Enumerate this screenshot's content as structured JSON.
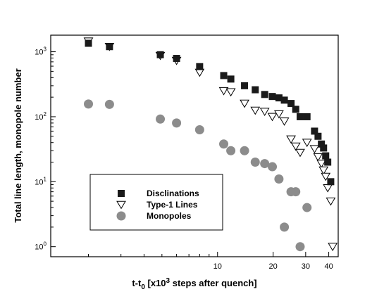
{
  "chart_data": {
    "type": "scatter",
    "xscale": "log",
    "yscale": "log",
    "xlim": [
      1.25,
      45
    ],
    "ylim": [
      0.7,
      1800
    ],
    "xlabel": "t-t",
    "xlabel_sub": "0",
    "xlabel_bracket_pre": " [x10",
    "xlabel_sup": "3",
    "xlabel_post": " steps after quench]",
    "ylabel": "Total line length, monopole number",
    "x_ticks": [
      {
        "value": 10,
        "label": "10"
      },
      {
        "value": 20,
        "label": "20"
      },
      {
        "value": 30,
        "label": "30"
      },
      {
        "value": 40,
        "label": "40"
      }
    ],
    "y_ticks": [
      {
        "value": 1,
        "base": "10",
        "exp": "0"
      },
      {
        "value": 10,
        "base": "10",
        "exp": "1"
      },
      {
        "value": 100,
        "base": "10",
        "exp": "2"
      },
      {
        "value": 1000,
        "base": "10",
        "exp": "3"
      }
    ],
    "legend_position": "lower-left",
    "series": [
      {
        "name": "Disclinations",
        "marker": "filled-square",
        "color": "#1a1a1a",
        "points": [
          [
            2.0,
            1350
          ],
          [
            2.6,
            1200
          ],
          [
            4.9,
            900
          ],
          [
            6.0,
            790
          ],
          [
            8.0,
            590
          ],
          [
            10.8,
            430
          ],
          [
            11.8,
            380
          ],
          [
            14.0,
            300
          ],
          [
            16.0,
            260
          ],
          [
            18.0,
            220
          ],
          [
            19.8,
            205
          ],
          [
            21.5,
            195
          ],
          [
            23.0,
            180
          ],
          [
            25.0,
            160
          ],
          [
            26.5,
            130
          ],
          [
            28.0,
            100
          ],
          [
            30.5,
            100
          ],
          [
            33.5,
            60
          ],
          [
            35.0,
            50
          ],
          [
            36.5,
            38
          ],
          [
            37.5,
            33
          ],
          [
            38.5,
            25
          ],
          [
            39.5,
            20
          ],
          [
            41.0,
            10
          ]
        ]
      },
      {
        "name": "Type-1 Lines",
        "marker": "open-triangle-down",
        "color": "#000000",
        "points": [
          [
            2.0,
            1450
          ],
          [
            2.6,
            1200
          ],
          [
            4.9,
            870
          ],
          [
            6.0,
            730
          ],
          [
            8.0,
            480
          ],
          [
            10.8,
            250
          ],
          [
            11.8,
            240
          ],
          [
            14.0,
            160
          ],
          [
            16.0,
            125
          ],
          [
            18.0,
            120
          ],
          [
            19.8,
            100
          ],
          [
            21.5,
            110
          ],
          [
            23.0,
            85
          ],
          [
            25.0,
            45
          ],
          [
            26.5,
            35
          ],
          [
            28.0,
            28
          ],
          [
            30.5,
            40
          ],
          [
            33.5,
            32
          ],
          [
            35.0,
            24
          ],
          [
            36.5,
            19
          ],
          [
            37.5,
            15
          ],
          [
            38.5,
            12
          ],
          [
            39.5,
            8
          ],
          [
            41.0,
            5
          ],
          [
            42.0,
            1
          ]
        ]
      },
      {
        "name": "Monopoles",
        "marker": "filled-circle",
        "color": "#8c8c8c",
        "points": [
          [
            2.0,
            157
          ],
          [
            2.6,
            155
          ],
          [
            4.9,
            92
          ],
          [
            6.0,
            80
          ],
          [
            8.0,
            63
          ],
          [
            10.8,
            38
          ],
          [
            11.8,
            30
          ],
          [
            14.0,
            30
          ],
          [
            16.0,
            20
          ],
          [
            18.0,
            19
          ],
          [
            19.8,
            17
          ],
          [
            21.5,
            11
          ],
          [
            23.0,
            2
          ],
          [
            25.0,
            7
          ],
          [
            26.5,
            7
          ],
          [
            28.0,
            1
          ],
          [
            30.5,
            4
          ]
        ]
      }
    ]
  }
}
